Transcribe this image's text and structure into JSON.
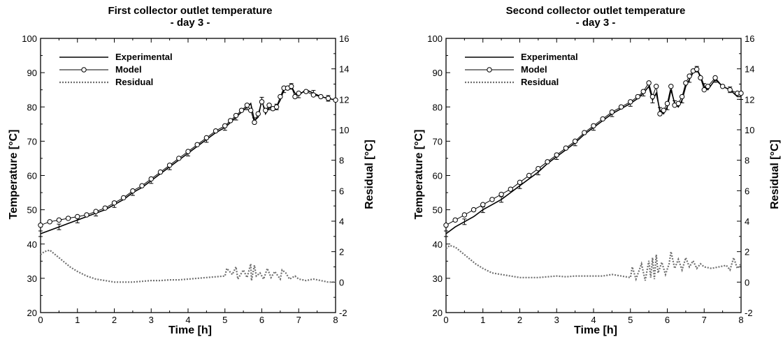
{
  "chart_data": [
    {
      "type": "line",
      "title": "First collector outlet temperature",
      "subtitle": "- day 3 -",
      "xlabel": "Time [h]",
      "ylabel": "Temperature [°C]",
      "y2label": "Residual [°C]",
      "xlim": [
        0,
        8
      ],
      "ylim": [
        20,
        100
      ],
      "y2lim": [
        -2,
        16
      ],
      "x_ticks": [
        "0",
        "1",
        "2",
        "3",
        "4",
        "5",
        "6",
        "7",
        "8"
      ],
      "y_ticks": [
        "20",
        "30",
        "40",
        "50",
        "60",
        "70",
        "80",
        "90",
        "100"
      ],
      "y2_ticks": [
        "-2",
        "0",
        "2",
        "4",
        "6",
        "8",
        "10",
        "12",
        "14",
        "16"
      ],
      "grid": false,
      "legend_position": "top-left",
      "series": [
        {
          "name": "Experimental",
          "axis": "left",
          "style": "solid",
          "x": [
            0,
            0.25,
            0.5,
            0.75,
            1,
            1.25,
            1.5,
            1.75,
            2,
            2.25,
            2.5,
            2.75,
            3,
            3.25,
            3.5,
            3.75,
            4,
            4.25,
            4.5,
            4.75,
            5,
            5.15,
            5.3,
            5.45,
            5.6,
            5.7,
            5.8,
            5.9,
            6.0,
            6.1,
            6.2,
            6.3,
            6.4,
            6.5,
            6.6,
            6.7,
            6.8,
            6.9,
            7.0,
            7.2,
            7.4,
            7.6,
            7.8,
            8.0
          ],
          "values": [
            43,
            44,
            45,
            46,
            47,
            48,
            49,
            50,
            51.5,
            53,
            55,
            56.5,
            58.5,
            60.5,
            62.5,
            64.5,
            66.5,
            68.5,
            70.5,
            72.5,
            74,
            75.5,
            77,
            78.5,
            80,
            81,
            76,
            77,
            82,
            78,
            80,
            79,
            80,
            82,
            85,
            86,
            86,
            84,
            83.5,
            85,
            84,
            83,
            82.5,
            82
          ]
        },
        {
          "name": "Model",
          "axis": "left",
          "style": "line-circle",
          "x": [
            0,
            0.25,
            0.5,
            0.75,
            1,
            1.25,
            1.5,
            1.75,
            2,
            2.25,
            2.5,
            2.75,
            3,
            3.25,
            3.5,
            3.75,
            4,
            4.25,
            4.5,
            4.75,
            5,
            5.15,
            5.3,
            5.45,
            5.6,
            5.7,
            5.8,
            5.9,
            6.0,
            6.1,
            6.2,
            6.3,
            6.4,
            6.5,
            6.6,
            6.7,
            6.8,
            6.9,
            7.0,
            7.2,
            7.4,
            7.6,
            7.8,
            8.0
          ],
          "values": [
            45.5,
            46.5,
            47,
            47.5,
            48,
            48.5,
            49.5,
            50.5,
            52,
            53.5,
            55.5,
            57,
            59,
            61,
            63,
            65,
            67,
            69,
            71,
            73,
            74.5,
            76,
            77.5,
            79,
            80.5,
            79,
            75.5,
            78,
            81.5,
            79,
            80.5,
            79.5,
            80,
            83,
            85.5,
            85.5,
            86,
            83,
            84,
            84.5,
            83.5,
            83,
            82.5,
            82
          ]
        },
        {
          "name": "Residual",
          "axis": "right",
          "style": "dotted",
          "x": [
            0,
            0.1,
            0.25,
            0.4,
            0.6,
            0.8,
            1.0,
            1.25,
            1.5,
            1.75,
            2.0,
            2.25,
            2.5,
            2.75,
            3.0,
            3.25,
            3.5,
            3.75,
            4.0,
            4.25,
            4.5,
            4.75,
            5.0,
            5.05,
            5.2,
            5.3,
            5.35,
            5.5,
            5.6,
            5.7,
            5.72,
            5.8,
            5.85,
            5.95,
            6.05,
            6.15,
            6.25,
            6.35,
            6.5,
            6.55,
            6.65,
            6.75,
            6.9,
            7.0,
            7.2,
            7.4,
            7.6,
            7.8,
            8.0
          ],
          "values": [
            1.8,
            2.0,
            2.1,
            1.8,
            1.4,
            1.0,
            0.7,
            0.4,
            0.2,
            0.1,
            0.0,
            0.0,
            0.0,
            0.05,
            0.1,
            0.1,
            0.15,
            0.15,
            0.2,
            0.25,
            0.3,
            0.35,
            0.4,
            0.9,
            0.5,
            1.0,
            0.2,
            0.8,
            0.3,
            1.2,
            0.1,
            1.1,
            0.4,
            0.6,
            0.2,
            0.9,
            0.3,
            0.7,
            0.2,
            0.8,
            0.6,
            0.2,
            0.4,
            0.2,
            0.1,
            0.2,
            0.1,
            0.0,
            0.0
          ]
        }
      ]
    },
    {
      "type": "line",
      "title": "Second collector outlet temperature",
      "subtitle": "- day 3 -",
      "xlabel": "Time [h]",
      "ylabel": "Temperature [°C]",
      "y2label": "Residual [°C]",
      "xlim": [
        0,
        8
      ],
      "ylim": [
        20,
        100
      ],
      "y2lim": [
        -2,
        16
      ],
      "x_ticks": [
        "0",
        "1",
        "2",
        "3",
        "4",
        "5",
        "6",
        "7",
        "8"
      ],
      "y_ticks": [
        "20",
        "30",
        "40",
        "50",
        "60",
        "70",
        "80",
        "90",
        "100"
      ],
      "y2_ticks": [
        "-2",
        "0",
        "2",
        "4",
        "6",
        "8",
        "10",
        "12",
        "14",
        "16"
      ],
      "grid": false,
      "legend_position": "top-left",
      "series": [
        {
          "name": "Experimental",
          "axis": "left",
          "style": "solid",
          "x": [
            0,
            0.25,
            0.5,
            0.75,
            1,
            1.25,
            1.5,
            1.75,
            2,
            2.25,
            2.5,
            2.75,
            3,
            3.25,
            3.5,
            3.75,
            4,
            4.25,
            4.5,
            4.75,
            5,
            5.2,
            5.35,
            5.5,
            5.6,
            5.7,
            5.8,
            5.9,
            6.0,
            6.1,
            6.2,
            6.3,
            6.4,
            6.5,
            6.6,
            6.7,
            6.8,
            6.9,
            7.0,
            7.1,
            7.3,
            7.5,
            7.7,
            7.9,
            8.0
          ],
          "values": [
            43,
            45,
            46.5,
            48,
            50,
            51.5,
            53,
            55,
            57,
            59,
            61,
            63.5,
            65.5,
            67.5,
            69.5,
            72,
            74,
            76,
            78,
            79.5,
            81,
            82.5,
            84,
            86,
            82,
            84,
            79,
            78,
            80,
            85,
            81,
            80,
            82,
            86,
            88,
            90,
            91,
            89,
            86,
            85,
            88,
            86,
            85,
            83,
            83
          ]
        },
        {
          "name": "Model",
          "axis": "left",
          "style": "line-circle",
          "x": [
            0,
            0.25,
            0.5,
            0.75,
            1,
            1.25,
            1.5,
            1.75,
            2,
            2.25,
            2.5,
            2.75,
            3,
            3.25,
            3.5,
            3.75,
            4,
            4.25,
            4.5,
            4.75,
            5,
            5.2,
            5.35,
            5.5,
            5.6,
            5.7,
            5.8,
            5.9,
            6.0,
            6.1,
            6.2,
            6.3,
            6.4,
            6.5,
            6.6,
            6.7,
            6.8,
            6.9,
            7.0,
            7.1,
            7.3,
            7.5,
            7.7,
            7.9,
            8.0
          ],
          "values": [
            45.5,
            47,
            48.5,
            50,
            51.5,
            53,
            54.5,
            56,
            58,
            60,
            62,
            64,
            66,
            68,
            70,
            72.5,
            74.5,
            76.5,
            78.5,
            80,
            81.5,
            83,
            84.5,
            87,
            83,
            86,
            78,
            79,
            81,
            86,
            80.5,
            81,
            83,
            87,
            89,
            90.5,
            91,
            88.5,
            85,
            86,
            88.5,
            86,
            85,
            84,
            84
          ]
        },
        {
          "name": "Residual",
          "axis": "right",
          "style": "dotted",
          "x": [
            0,
            0.1,
            0.25,
            0.4,
            0.6,
            0.8,
            1.0,
            1.25,
            1.5,
            1.75,
            2.0,
            2.25,
            2.5,
            2.75,
            3.0,
            3.25,
            3.5,
            3.75,
            4.0,
            4.25,
            4.5,
            4.75,
            5.0,
            5.05,
            5.15,
            5.3,
            5.4,
            5.5,
            5.55,
            5.6,
            5.65,
            5.7,
            5.75,
            5.85,
            5.95,
            6.05,
            6.1,
            6.2,
            6.3,
            6.4,
            6.5,
            6.6,
            6.7,
            6.8,
            6.9,
            7.0,
            7.2,
            7.4,
            7.6,
            7.7,
            7.8,
            7.9,
            8.0
          ],
          "values": [
            2.2,
            2.4,
            2.3,
            2.0,
            1.6,
            1.2,
            0.9,
            0.6,
            0.5,
            0.4,
            0.3,
            0.3,
            0.3,
            0.35,
            0.4,
            0.35,
            0.4,
            0.4,
            0.4,
            0.4,
            0.5,
            0.4,
            0.3,
            1.0,
            0.2,
            1.2,
            0.1,
            1.4,
            0.3,
            1.6,
            0.2,
            1.8,
            0.6,
            1.3,
            0.5,
            1.2,
            2.0,
            0.9,
            1.5,
            0.8,
            1.6,
            1.0,
            1.4,
            0.9,
            1.2,
            1.0,
            0.9,
            1.0,
            1.1,
            0.8,
            1.6,
            0.9,
            1.2
          ]
        }
      ]
    }
  ]
}
